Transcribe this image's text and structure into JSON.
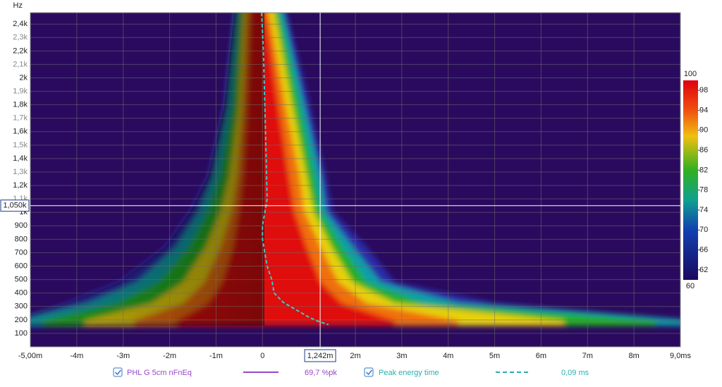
{
  "chart_data": {
    "type": "heatmap",
    "y_label": "Hz",
    "xlim": [
      -5,
      9
    ],
    "xticks": [
      {
        "value": -5,
        "label": "-5,00m"
      },
      {
        "value": -4,
        "label": "-4m"
      },
      {
        "value": -3,
        "label": "-3m"
      },
      {
        "value": -2,
        "label": "-2m"
      },
      {
        "value": -1,
        "label": "-1m"
      },
      0,
      {
        "value": 2,
        "label": "2m"
      },
      {
        "value": 3,
        "label": "3m"
      },
      {
        "value": 4,
        "label": "4m"
      },
      {
        "value": 5,
        "label": "5m"
      },
      {
        "value": 6,
        "label": "6m"
      },
      {
        "value": 7,
        "label": "7m"
      },
      {
        "value": 8,
        "label": "8m"
      },
      {
        "value": 9,
        "label": "9,0ms"
      }
    ],
    "ylim": [
      0,
      2485
    ],
    "yticks": [
      100,
      200,
      300,
      400,
      500,
      600,
      700,
      800,
      900,
      {
        "value": 1000,
        "label": "1k"
      },
      {
        "value": 1100,
        "label": "1,1k"
      },
      {
        "value": 1200,
        "label": "1,2k"
      },
      {
        "value": 1300,
        "label": "1,3k"
      },
      {
        "value": 1400,
        "label": "1,4k"
      },
      {
        "value": 1500,
        "label": "1,5k"
      },
      {
        "value": 1600,
        "label": "1,6k"
      },
      {
        "value": 1700,
        "label": "1,7k"
      },
      {
        "value": 1800,
        "label": "1,8k"
      },
      {
        "value": 1900,
        "label": "1,9k"
      },
      {
        "value": 2000,
        "label": "2k"
      },
      {
        "value": 2100,
        "label": "2,1k"
      },
      {
        "value": 2200,
        "label": "2,2k"
      },
      {
        "value": 2300,
        "label": "2,3k"
      },
      {
        "value": 2400,
        "label": "2,4k"
      }
    ],
    "colorbar": {
      "range": [
        60,
        100
      ],
      "ticks": [
        62,
        66,
        70,
        74,
        78,
        82,
        86,
        90,
        94,
        98
      ]
    },
    "cursor": {
      "x": 1.242,
      "y": 1050,
      "x_label": "1,242m",
      "y_label": "1,050k"
    },
    "traces": [
      {
        "name": "PHL G 5cm nFnEq",
        "value_label": "69,7 %pk",
        "color": "#9848c8"
      }
    ],
    "series": [
      {
        "name": "Peak energy time",
        "value_label": "0,09 ms",
        "color": "#3cc8c8",
        "x": [
          -0.02,
          0.02,
          0.05,
          0.08,
          0.1,
          0.05,
          0.0,
          0.0,
          0.05,
          0.1,
          0.2,
          0.25,
          0.45,
          0.7,
          1.0,
          1.2,
          1.42
        ],
        "values": [
          2485,
          2200,
          1800,
          1400,
          1100,
          1000,
          900,
          800,
          700,
          600,
          500,
          400,
          330,
          280,
          220,
          190,
          165
        ]
      }
    ]
  }
}
